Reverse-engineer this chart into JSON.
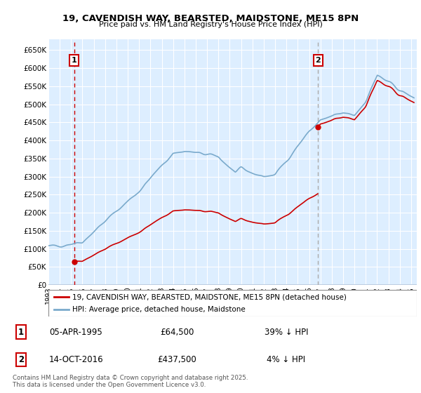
{
  "title_line1": "19, CAVENDISH WAY, BEARSTED, MAIDSTONE, ME15 8PN",
  "title_line2": "Price paid vs. HM Land Registry's House Price Index (HPI)",
  "ylim": [
    0,
    680000
  ],
  "yticks": [
    0,
    50000,
    100000,
    150000,
    200000,
    250000,
    300000,
    350000,
    400000,
    450000,
    500000,
    550000,
    600000,
    650000
  ],
  "ytick_labels": [
    "£0",
    "£50K",
    "£100K",
    "£150K",
    "£200K",
    "£250K",
    "£300K",
    "£350K",
    "£400K",
    "£450K",
    "£500K",
    "£550K",
    "£600K",
    "£650K"
  ],
  "xlim_start": 1993.0,
  "xlim_end": 2025.5,
  "xticks": [
    1993,
    1994,
    1995,
    1996,
    1997,
    1998,
    1999,
    2000,
    2001,
    2002,
    2003,
    2004,
    2005,
    2006,
    2007,
    2008,
    2009,
    2010,
    2011,
    2012,
    2013,
    2014,
    2015,
    2016,
    2017,
    2018,
    2019,
    2020,
    2021,
    2022,
    2023,
    2024,
    2025
  ],
  "sale1_x": 1995.27,
  "sale1_y": 64500,
  "sale2_x": 2016.79,
  "sale2_y": 437500,
  "legend_line1": "19, CAVENDISH WAY, BEARSTED, MAIDSTONE, ME15 8PN (detached house)",
  "legend_line2": "HPI: Average price, detached house, Maidstone",
  "red_color": "#cc0000",
  "blue_color": "#7aaacc",
  "bg_color": "#ddeeff",
  "grid_color": "#ffffff",
  "sale1_date": "05-APR-1995",
  "sale1_price": "£64,500",
  "sale1_hpi": "39% ↓ HPI",
  "sale2_date": "14-OCT-2016",
  "sale2_price": "£437,500",
  "sale2_hpi": "4% ↓ HPI",
  "footnote": "Contains HM Land Registry data © Crown copyright and database right 2025.\nThis data is licensed under the Open Government Licence v3.0."
}
